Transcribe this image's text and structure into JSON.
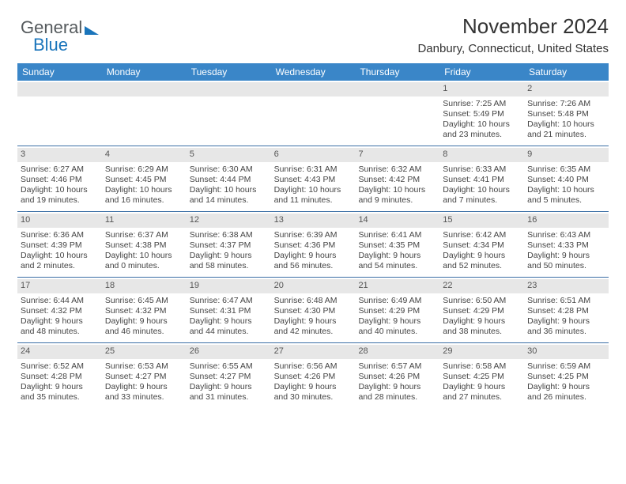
{
  "logo": {
    "text1": "General",
    "text2": "Blue"
  },
  "header": {
    "title": "November 2024",
    "subtitle": "Danbury, Connecticut, United States"
  },
  "colors": {
    "headerbar": "#3a86c8",
    "numrow": "#e7e7e7",
    "divider": "#3a6ea5",
    "logoBlue": "#1b75bb",
    "logoGray": "#555a5d"
  },
  "days": [
    "Sunday",
    "Monday",
    "Tuesday",
    "Wednesday",
    "Thursday",
    "Friday",
    "Saturday"
  ],
  "weeks": [
    [
      {
        "n": "",
        "sr": "",
        "ss": "",
        "dl": ""
      },
      {
        "n": "",
        "sr": "",
        "ss": "",
        "dl": ""
      },
      {
        "n": "",
        "sr": "",
        "ss": "",
        "dl": ""
      },
      {
        "n": "",
        "sr": "",
        "ss": "",
        "dl": ""
      },
      {
        "n": "",
        "sr": "",
        "ss": "",
        "dl": ""
      },
      {
        "n": "1",
        "sr": "Sunrise: 7:25 AM",
        "ss": "Sunset: 5:49 PM",
        "dl": "Daylight: 10 hours and 23 minutes."
      },
      {
        "n": "2",
        "sr": "Sunrise: 7:26 AM",
        "ss": "Sunset: 5:48 PM",
        "dl": "Daylight: 10 hours and 21 minutes."
      }
    ],
    [
      {
        "n": "3",
        "sr": "Sunrise: 6:27 AM",
        "ss": "Sunset: 4:46 PM",
        "dl": "Daylight: 10 hours and 19 minutes."
      },
      {
        "n": "4",
        "sr": "Sunrise: 6:29 AM",
        "ss": "Sunset: 4:45 PM",
        "dl": "Daylight: 10 hours and 16 minutes."
      },
      {
        "n": "5",
        "sr": "Sunrise: 6:30 AM",
        "ss": "Sunset: 4:44 PM",
        "dl": "Daylight: 10 hours and 14 minutes."
      },
      {
        "n": "6",
        "sr": "Sunrise: 6:31 AM",
        "ss": "Sunset: 4:43 PM",
        "dl": "Daylight: 10 hours and 11 minutes."
      },
      {
        "n": "7",
        "sr": "Sunrise: 6:32 AM",
        "ss": "Sunset: 4:42 PM",
        "dl": "Daylight: 10 hours and 9 minutes."
      },
      {
        "n": "8",
        "sr": "Sunrise: 6:33 AM",
        "ss": "Sunset: 4:41 PM",
        "dl": "Daylight: 10 hours and 7 minutes."
      },
      {
        "n": "9",
        "sr": "Sunrise: 6:35 AM",
        "ss": "Sunset: 4:40 PM",
        "dl": "Daylight: 10 hours and 5 minutes."
      }
    ],
    [
      {
        "n": "10",
        "sr": "Sunrise: 6:36 AM",
        "ss": "Sunset: 4:39 PM",
        "dl": "Daylight: 10 hours and 2 minutes."
      },
      {
        "n": "11",
        "sr": "Sunrise: 6:37 AM",
        "ss": "Sunset: 4:38 PM",
        "dl": "Daylight: 10 hours and 0 minutes."
      },
      {
        "n": "12",
        "sr": "Sunrise: 6:38 AM",
        "ss": "Sunset: 4:37 PM",
        "dl": "Daylight: 9 hours and 58 minutes."
      },
      {
        "n": "13",
        "sr": "Sunrise: 6:39 AM",
        "ss": "Sunset: 4:36 PM",
        "dl": "Daylight: 9 hours and 56 minutes."
      },
      {
        "n": "14",
        "sr": "Sunrise: 6:41 AM",
        "ss": "Sunset: 4:35 PM",
        "dl": "Daylight: 9 hours and 54 minutes."
      },
      {
        "n": "15",
        "sr": "Sunrise: 6:42 AM",
        "ss": "Sunset: 4:34 PM",
        "dl": "Daylight: 9 hours and 52 minutes."
      },
      {
        "n": "16",
        "sr": "Sunrise: 6:43 AM",
        "ss": "Sunset: 4:33 PM",
        "dl": "Daylight: 9 hours and 50 minutes."
      }
    ],
    [
      {
        "n": "17",
        "sr": "Sunrise: 6:44 AM",
        "ss": "Sunset: 4:32 PM",
        "dl": "Daylight: 9 hours and 48 minutes."
      },
      {
        "n": "18",
        "sr": "Sunrise: 6:45 AM",
        "ss": "Sunset: 4:32 PM",
        "dl": "Daylight: 9 hours and 46 minutes."
      },
      {
        "n": "19",
        "sr": "Sunrise: 6:47 AM",
        "ss": "Sunset: 4:31 PM",
        "dl": "Daylight: 9 hours and 44 minutes."
      },
      {
        "n": "20",
        "sr": "Sunrise: 6:48 AM",
        "ss": "Sunset: 4:30 PM",
        "dl": "Daylight: 9 hours and 42 minutes."
      },
      {
        "n": "21",
        "sr": "Sunrise: 6:49 AM",
        "ss": "Sunset: 4:29 PM",
        "dl": "Daylight: 9 hours and 40 minutes."
      },
      {
        "n": "22",
        "sr": "Sunrise: 6:50 AM",
        "ss": "Sunset: 4:29 PM",
        "dl": "Daylight: 9 hours and 38 minutes."
      },
      {
        "n": "23",
        "sr": "Sunrise: 6:51 AM",
        "ss": "Sunset: 4:28 PM",
        "dl": "Daylight: 9 hours and 36 minutes."
      }
    ],
    [
      {
        "n": "24",
        "sr": "Sunrise: 6:52 AM",
        "ss": "Sunset: 4:28 PM",
        "dl": "Daylight: 9 hours and 35 minutes."
      },
      {
        "n": "25",
        "sr": "Sunrise: 6:53 AM",
        "ss": "Sunset: 4:27 PM",
        "dl": "Daylight: 9 hours and 33 minutes."
      },
      {
        "n": "26",
        "sr": "Sunrise: 6:55 AM",
        "ss": "Sunset: 4:27 PM",
        "dl": "Daylight: 9 hours and 31 minutes."
      },
      {
        "n": "27",
        "sr": "Sunrise: 6:56 AM",
        "ss": "Sunset: 4:26 PM",
        "dl": "Daylight: 9 hours and 30 minutes."
      },
      {
        "n": "28",
        "sr": "Sunrise: 6:57 AM",
        "ss": "Sunset: 4:26 PM",
        "dl": "Daylight: 9 hours and 28 minutes."
      },
      {
        "n": "29",
        "sr": "Sunrise: 6:58 AM",
        "ss": "Sunset: 4:25 PM",
        "dl": "Daylight: 9 hours and 27 minutes."
      },
      {
        "n": "30",
        "sr": "Sunrise: 6:59 AM",
        "ss": "Sunset: 4:25 PM",
        "dl": "Daylight: 9 hours and 26 minutes."
      }
    ]
  ]
}
